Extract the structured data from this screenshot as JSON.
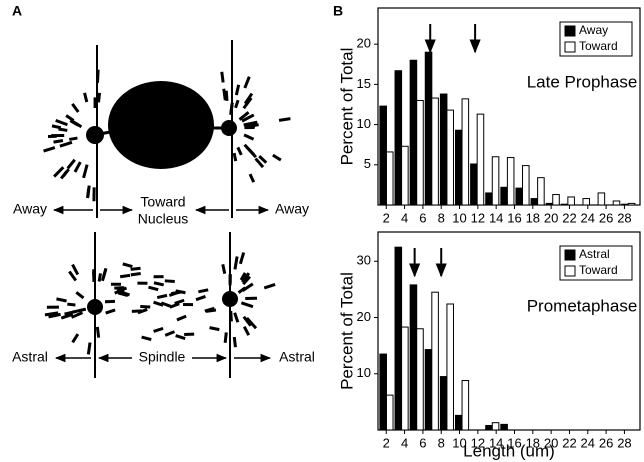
{
  "panels": {
    "a": "A",
    "b": "B"
  },
  "diagram": {
    "top_labels": [
      "Away",
      "Toward",
      "Nucleus",
      "Away"
    ],
    "bottom_labels": [
      "Astral",
      "Spindle",
      "Astral"
    ]
  },
  "chart_data": [
    {
      "type": "histogram",
      "label": "Late Prophase",
      "ylabel": "Percent of Total",
      "bins": [
        1.2,
        2.85,
        4.5,
        6.15,
        7.8,
        9.45,
        11.1,
        12.75,
        14.4,
        16.05,
        17.7,
        19.35,
        21.0,
        22.65,
        24.3,
        25.95,
        27.6,
        29.25
      ],
      "series": [
        {
          "name": "Away",
          "color": "#000000",
          "values": [
            12.3,
            16.7,
            18.0,
            19.0,
            13.8,
            9.3,
            5.1,
            1.5,
            2.2,
            2.1,
            0.8,
            0.2,
            0.1,
            0,
            0,
            0,
            0.1
          ]
        },
        {
          "name": "Toward",
          "color": "#ffffff",
          "values": [
            6.6,
            7.3,
            13.0,
            13.3,
            11.8,
            13.2,
            11.3,
            6.0,
            5.9,
            4.9,
            3.4,
            1.3,
            1.0,
            0.8,
            1.5,
            0.5,
            0.2
          ]
        }
      ],
      "arrows_x": [
        6.8,
        11.7
      ],
      "xlim": [
        1.1,
        29.7
      ],
      "xticks": [
        2,
        4,
        6,
        8,
        10,
        12,
        14,
        16,
        18,
        20,
        22,
        24,
        26,
        28
      ],
      "ylim": [
        0,
        24.5
      ],
      "yticks": [
        5,
        10,
        15,
        20
      ],
      "legend": "upper right"
    },
    {
      "type": "histogram",
      "label": "Prometaphase",
      "ylabel": "Percent of Total",
      "xlabel": "Length (um)",
      "bins": [
        1.2,
        2.85,
        4.5,
        6.15,
        7.8,
        9.45,
        11.1,
        12.75,
        14.4,
        16.05,
        17.7,
        19.35,
        21.0,
        22.65,
        24.3,
        25.95,
        27.6,
        29.25
      ],
      "series": [
        {
          "name": "Astral",
          "color": "#000000",
          "values": [
            13.5,
            32.5,
            25.8,
            14.3,
            9.5,
            2.6,
            0,
            0.8,
            1.0,
            0,
            0,
            0,
            0,
            0,
            0,
            0,
            0
          ]
        },
        {
          "name": "Toward",
          "color": "#ffffff",
          "values": [
            6.2,
            18.3,
            18.0,
            24.5,
            22.4,
            8.8,
            0,
            1.3,
            0,
            0,
            0,
            0,
            0,
            0,
            0,
            0,
            0
          ]
        }
      ],
      "arrows_x": [
        5.1,
        8.0
      ],
      "xlim": [
        1.1,
        29.7
      ],
      "xticks": [
        2,
        4,
        6,
        8,
        10,
        12,
        14,
        16,
        18,
        20,
        22,
        24,
        26,
        28
      ],
      "ylim": [
        0,
        35.2
      ],
      "yticks": [
        10,
        20,
        30
      ],
      "legend": "upper right"
    }
  ]
}
